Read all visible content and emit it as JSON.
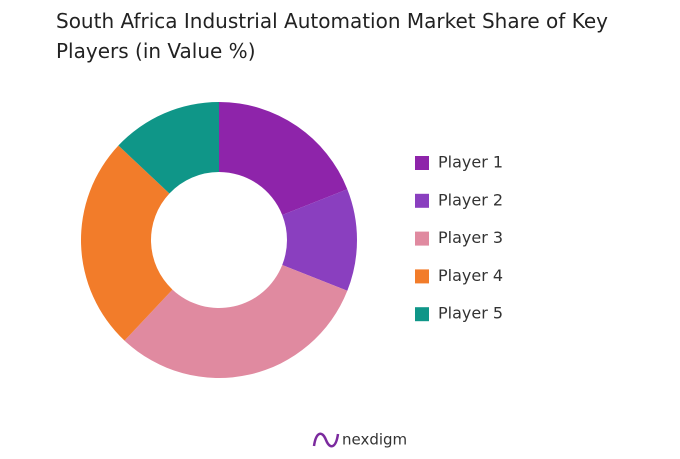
{
  "chart_data": {
    "type": "donut",
    "title": "South Africa Industrial Automation Market Share of Key Players (in Value %)",
    "categories": [
      "Player 1",
      "Player 2",
      "Player 3",
      "Player 4",
      "Player 5"
    ],
    "values": [
      19,
      12,
      31,
      25,
      13
    ],
    "colors": [
      "#8e24aa",
      "#8a3fbf",
      "#e08aa0",
      "#f27c2a",
      "#0f9688"
    ],
    "legend": "right"
  },
  "logo": "nexdigm"
}
